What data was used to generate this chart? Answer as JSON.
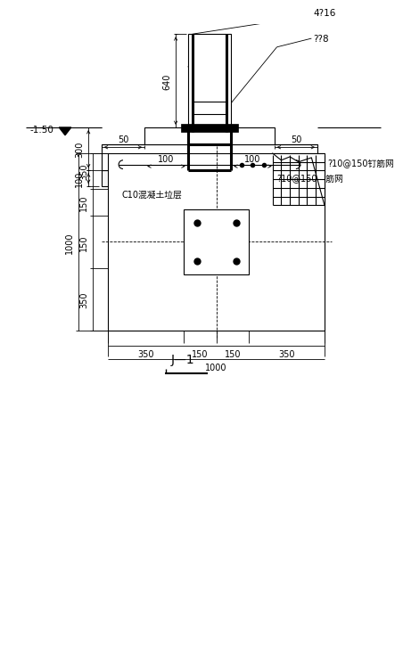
{
  "bg_color": "#ffffff",
  "lc": "#000000",
  "thick_lw": 2.2,
  "thin_lw": 0.8,
  "dim_lw": 0.6,
  "figsize": [
    4.46,
    7.1
  ],
  "dpi": 100,
  "label_4phi16": "4?16",
  "label_2phi8": "??8",
  "label_phi10_150": "?10@150钉筋网",
  "label_c10": "C10混凝土垃层",
  "label_minus150": "-1.50",
  "label_section": "J—1"
}
